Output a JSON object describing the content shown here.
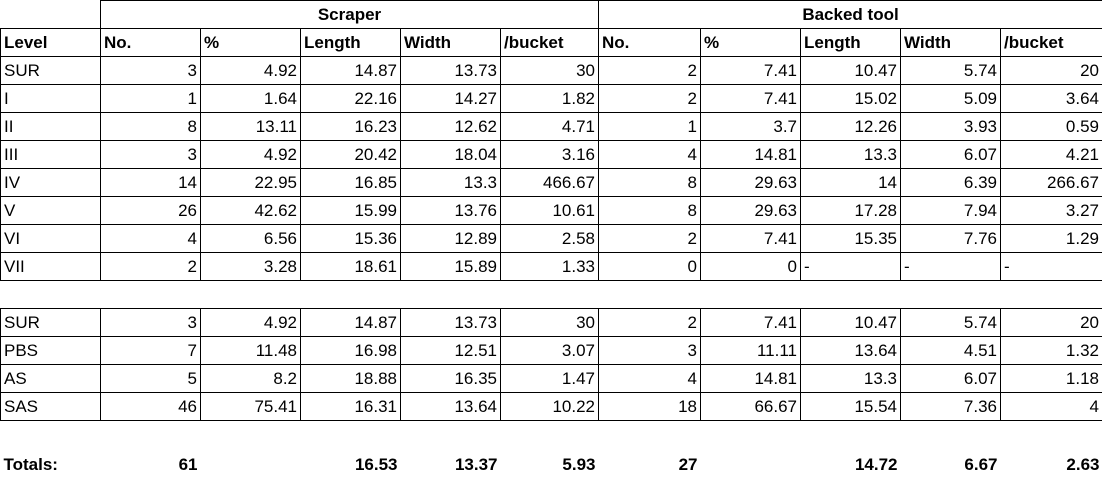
{
  "group_headers": [
    "Scraper",
    "Backed tool"
  ],
  "columns": [
    "Level",
    "No.",
    "%",
    "Length",
    "Width",
    "/bucket",
    "No.",
    "%",
    "Length",
    "Width",
    "/bucket"
  ],
  "levels": [
    [
      "SUR",
      "3",
      "4.92",
      "14.87",
      "13.73",
      "30",
      "2",
      "7.41",
      "10.47",
      "5.74",
      "20"
    ],
    [
      "I",
      "1",
      "1.64",
      "22.16",
      "14.27",
      "1.82",
      "2",
      "7.41",
      "15.02",
      "5.09",
      "3.64"
    ],
    [
      "II",
      "8",
      "13.11",
      "16.23",
      "12.62",
      "4.71",
      "1",
      "3.7",
      "12.26",
      "3.93",
      "0.59"
    ],
    [
      "III",
      "3",
      "4.92",
      "20.42",
      "18.04",
      "3.16",
      "4",
      "14.81",
      "13.3",
      "6.07",
      "4.21"
    ],
    [
      "IV",
      "14",
      "22.95",
      "16.85",
      "13.3",
      "466.67",
      "8",
      "29.63",
      "14",
      "6.39",
      "266.67"
    ],
    [
      "V",
      "26",
      "42.62",
      "15.99",
      "13.76",
      "10.61",
      "8",
      "29.63",
      "17.28",
      "7.94",
      "3.27"
    ],
    [
      "VI",
      "4",
      "6.56",
      "15.36",
      "12.89",
      "2.58",
      "2",
      "7.41",
      "15.35",
      "7.76",
      "1.29"
    ],
    [
      "VII",
      "2",
      "3.28",
      "18.61",
      "15.89",
      "1.33",
      "0",
      "0",
      "-",
      "-",
      "-"
    ]
  ],
  "units": [
    [
      "SUR",
      "3",
      "4.92",
      "14.87",
      "13.73",
      "30",
      "2",
      "7.41",
      "10.47",
      "5.74",
      "20"
    ],
    [
      "PBS",
      "7",
      "11.48",
      "16.98",
      "12.51",
      "3.07",
      "3",
      "11.11",
      "13.64",
      "4.51",
      "1.32"
    ],
    [
      "AS",
      "5",
      "8.2",
      "18.88",
      "16.35",
      "1.47",
      "4",
      "14.81",
      "13.3",
      "6.07",
      "1.18"
    ],
    [
      "SAS",
      "46",
      "75.41",
      "16.31",
      "13.64",
      "10.22",
      "18",
      "66.67",
      "15.54",
      "7.36",
      "4"
    ]
  ],
  "totals": [
    "Totals:",
    "61",
    "",
    "16.53",
    "13.37",
    "5.93",
    "27",
    "",
    "14.72",
    "6.67",
    "2.63"
  ]
}
